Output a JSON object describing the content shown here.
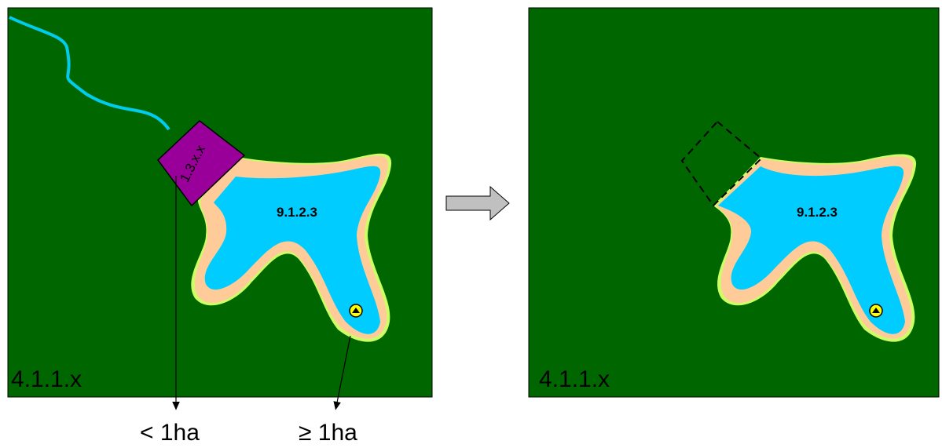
{
  "colors": {
    "forest": "#006600",
    "water": "#00CCFF",
    "beach": "#FFCC99",
    "fringe": "#CCFF66",
    "river": "#00CCEE",
    "urban": "#990099",
    "symbol": "#FFFF00",
    "arrow_fill": "#C0C0C0"
  },
  "left_panel": {
    "background_label": "4.1.1.x",
    "lake_label": "9.1.2.3",
    "patch_label": "1.3.x.x"
  },
  "right_panel": {
    "background_label": "4.1.1.x",
    "lake_label": "9.1.2.3"
  },
  "annotations": {
    "small_area": "< 1ha",
    "large_area": "≥ 1ha"
  },
  "icons": {
    "transition": "hollow-right-arrow-icon",
    "lake_symbol": "circular-emblem-icon"
  }
}
